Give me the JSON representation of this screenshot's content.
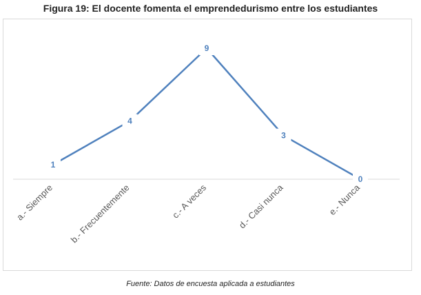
{
  "title": "Figura 19: El docente fomenta el emprendedurismo entre los estudiantes",
  "source": "Fuente: Datos de encuesta aplicada a estudiantes",
  "chart_data": {
    "type": "line",
    "categories": [
      "a.- Siempre",
      "b.- Frecuentemente",
      "c.- A veces",
      "d.- Casi nunca",
      "e.- Nunca"
    ],
    "values": [
      1,
      4,
      9,
      3,
      0
    ],
    "data_labels": [
      "1",
      "4",
      "9",
      "3",
      "0"
    ],
    "title": "",
    "xlabel": "",
    "ylabel": "",
    "ylim": [
      0,
      9
    ],
    "grid": false,
    "legend": "none",
    "line_color": "#4f81bd",
    "label_color": "#4f81bd",
    "axis_color": "#d9d9d9",
    "tick_label_color": "#595959"
  }
}
